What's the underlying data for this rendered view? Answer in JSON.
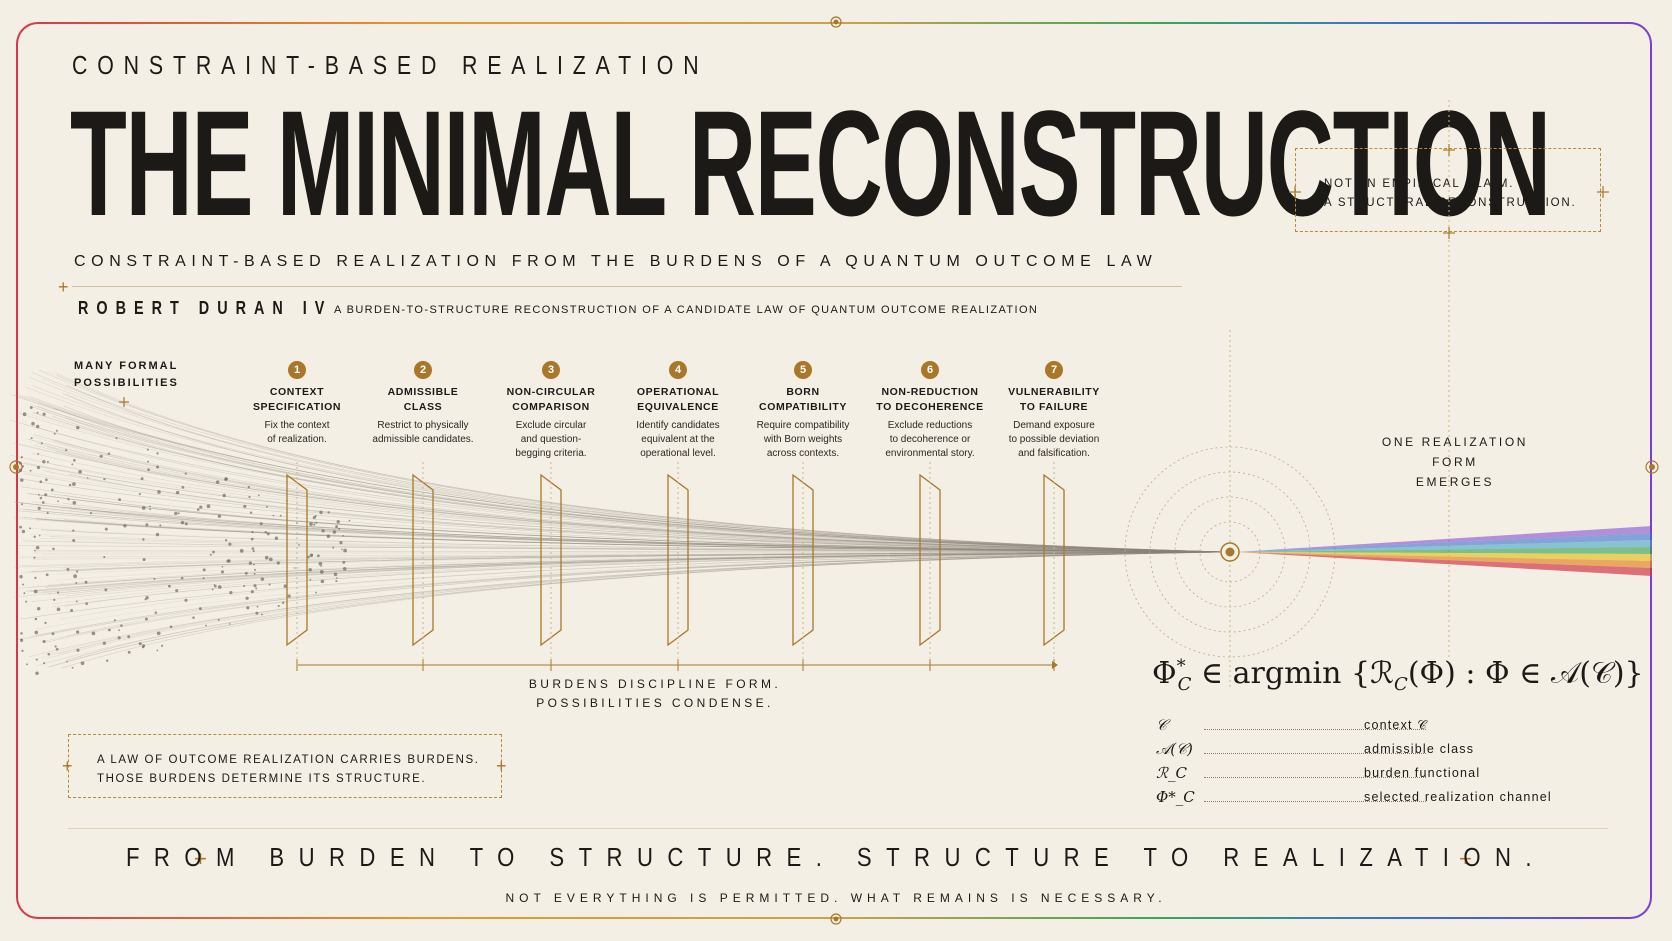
{
  "header": {
    "kicker": "CONSTRAINT-BASED REALIZATION",
    "title": "THE MINIMAL RECONSTRUCTION",
    "subtitle": "CONSTRAINT-BASED REALIZATION FROM THE BURDENS OF A QUANTUM OUTCOME LAW",
    "author": "ROBERT DURAN IV",
    "author_description": "A BURDEN-TO-STRUCTURE RECONSTRUCTION OF A CANDIDATE LAW OF QUANTUM OUTCOME REALIZATION"
  },
  "callout": {
    "line1": "NOT AN EMPIRICAL CLAIM.",
    "line2": "A STRUCTURAL RECONSTRUCTION."
  },
  "diagram": {
    "left_label_line1": "MANY FORMAL",
    "left_label_line2": "POSSIBILITIES",
    "right_label_line1": "ONE REALIZATION FORM",
    "right_label_line2": "EMERGES",
    "stages": [
      {
        "number": "1",
        "name_line1": "CONTEXT",
        "name_line2": "SPECIFICATION",
        "desc_line1": "Fix the context",
        "desc_line2": "of realization.",
        "desc_line3": ""
      },
      {
        "number": "2",
        "name_line1": "ADMISSIBLE",
        "name_line2": "CLASS",
        "desc_line1": "Restrict to physically",
        "desc_line2": "admissible candidates.",
        "desc_line3": ""
      },
      {
        "number": "3",
        "name_line1": "NON-CIRCULAR",
        "name_line2": "COMPARISON",
        "desc_line1": "Exclude circular",
        "desc_line2": "and question-",
        "desc_line3": "begging criteria."
      },
      {
        "number": "4",
        "name_line1": "OPERATIONAL",
        "name_line2": "EQUIVALENCE",
        "desc_line1": "Identify candidates",
        "desc_line2": "equivalent at the",
        "desc_line3": "operational level."
      },
      {
        "number": "5",
        "name_line1": "BORN",
        "name_line2": "COMPATIBILITY",
        "desc_line1": "Require compatibility",
        "desc_line2": "with Born weights",
        "desc_line3": "across contexts."
      },
      {
        "number": "6",
        "name_line1": "NON-REDUCTION",
        "name_line2": "TO DECOHERENCE",
        "desc_line1": "Exclude reductions",
        "desc_line2": "to decoherence or",
        "desc_line3": "environmental story."
      },
      {
        "number": "7",
        "name_line1": "VULNERABILITY",
        "name_line2": "TO FAILURE",
        "desc_line1": "Demand exposure",
        "desc_line2": "to possible deviation",
        "desc_line3": "and falsification."
      }
    ],
    "mid_caption_line1": "BURDENS DISCIPLINE FORM.",
    "mid_caption_line2": "POSSIBILITIES CONDENSE.",
    "colors": {
      "accent": "#a9772a",
      "ink": "#1c1a17",
      "background": "#f4efe4"
    }
  },
  "law_box": {
    "line1": "A LAW OF OUTCOME REALIZATION CARRIES BURDENS.",
    "line2": "THOSE BURDENS DETERMINE ITS STRUCTURE."
  },
  "formula": {
    "lhs": "Φ",
    "lhs_sup": "*",
    "lhs_sub": "C",
    "rest": " ∈ argmin {ℛ",
    "rest_sub": "C",
    "rest2": "(Φ) : Φ ∈ 𝒜(𝒞)}"
  },
  "legend": [
    {
      "symbol": "𝒞",
      "meaning": "context 𝒞"
    },
    {
      "symbol": "𝒜(𝒞)",
      "meaning": "admissible class"
    },
    {
      "symbol": "ℛ_C",
      "meaning": "burden functional"
    },
    {
      "symbol": "Φ*_C",
      "meaning": "selected realization channel"
    }
  ],
  "footer": {
    "tagline": "FROM BURDEN TO STRUCTURE. STRUCTURE TO REALIZATION.",
    "subtagline": "NOT EVERYTHING IS PERMITTED. WHAT REMAINS IS NECESSARY."
  }
}
